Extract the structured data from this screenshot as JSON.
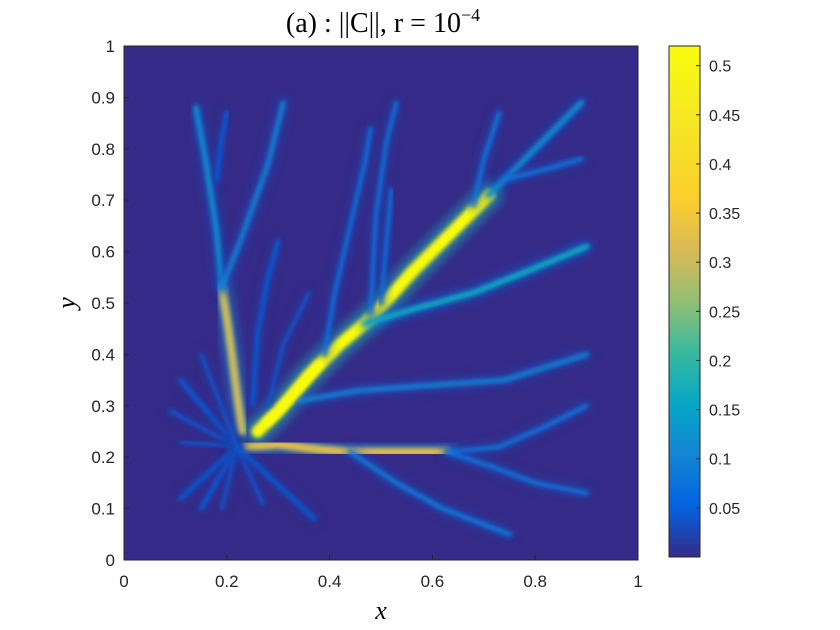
{
  "chart_data": {
    "type": "heatmap",
    "title": {
      "prefix": "(a) : ||C||, r = 10",
      "exponent": "−4"
    },
    "xlabel": "x",
    "ylabel": "y",
    "xlim": [
      0,
      1
    ],
    "ylim": [
      0,
      1
    ],
    "x_ticks": [
      "0",
      "0.2",
      "0.4",
      "0.6",
      "0.8",
      "1"
    ],
    "y_ticks": [
      "0",
      "0.1",
      "0.2",
      "0.3",
      "0.4",
      "0.5",
      "0.6",
      "0.7",
      "0.8",
      "0.9",
      "1"
    ],
    "colormap": "parula",
    "colorbar": {
      "range": [
        0,
        0.52
      ],
      "ticks": [
        "0.05",
        "0.1",
        "0.15",
        "0.2",
        "0.25",
        "0.3",
        "0.35",
        "0.4",
        "0.45",
        "0.5"
      ]
    },
    "background_value": 0.0,
    "source_point": [
      0.22,
      0.22
    ],
    "branches": [
      {
        "name": "main-trunk",
        "points": [
          [
            0.26,
            0.25
          ],
          [
            0.3,
            0.29
          ],
          [
            0.36,
            0.36
          ],
          [
            0.42,
            0.42
          ],
          [
            0.48,
            0.47
          ],
          [
            0.56,
            0.56
          ],
          [
            0.64,
            0.64
          ],
          [
            0.71,
            0.71
          ]
        ],
        "peak": 0.52
      },
      {
        "name": "upper-right-a",
        "points": [
          [
            0.71,
            0.71
          ],
          [
            0.76,
            0.76
          ],
          [
            0.83,
            0.83
          ],
          [
            0.89,
            0.89
          ]
        ],
        "peak": 0.12
      },
      {
        "name": "upper-right-b",
        "points": [
          [
            0.74,
            0.74
          ],
          [
            0.82,
            0.76
          ],
          [
            0.89,
            0.78
          ]
        ],
        "peak": 0.08
      },
      {
        "name": "upper-right-c",
        "points": [
          [
            0.68,
            0.69
          ],
          [
            0.7,
            0.78
          ],
          [
            0.73,
            0.87
          ]
        ],
        "peak": 0.08
      },
      {
        "name": "right-mid",
        "points": [
          [
            0.47,
            0.46
          ],
          [
            0.57,
            0.49
          ],
          [
            0.68,
            0.52
          ],
          [
            0.78,
            0.56
          ],
          [
            0.9,
            0.61
          ]
        ],
        "peak": 0.16
      },
      {
        "name": "up-from-050",
        "points": [
          [
            0.5,
            0.5
          ],
          [
            0.51,
            0.61
          ],
          [
            0.52,
            0.72
          ]
        ],
        "peak": 0.07
      },
      {
        "name": "up-from-048",
        "points": [
          [
            0.48,
            0.48
          ],
          [
            0.49,
            0.67
          ],
          [
            0.51,
            0.81
          ],
          [
            0.53,
            0.89
          ]
        ],
        "peak": 0.07
      },
      {
        "name": "up-from-040",
        "points": [
          [
            0.39,
            0.4
          ],
          [
            0.41,
            0.52
          ],
          [
            0.44,
            0.65
          ],
          [
            0.47,
            0.78
          ],
          [
            0.48,
            0.84
          ]
        ],
        "peak": 0.07
      },
      {
        "name": "lower-right",
        "points": [
          [
            0.34,
            0.31
          ],
          [
            0.46,
            0.33
          ],
          [
            0.6,
            0.34
          ],
          [
            0.74,
            0.35
          ],
          [
            0.9,
            0.4
          ]
        ],
        "peak": 0.1
      },
      {
        "name": "bottom-main",
        "points": [
          [
            0.23,
            0.22
          ],
          [
            0.3,
            0.225
          ],
          [
            0.38,
            0.215
          ],
          [
            0.44,
            0.21
          ],
          [
            0.55,
            0.21
          ],
          [
            0.63,
            0.21
          ]
        ],
        "peak": 0.32
      },
      {
        "name": "bottom-right-a",
        "points": [
          [
            0.63,
            0.21
          ],
          [
            0.73,
            0.22
          ],
          [
            0.82,
            0.26
          ],
          [
            0.9,
            0.3
          ]
        ],
        "peak": 0.08
      },
      {
        "name": "bottom-right-b",
        "points": [
          [
            0.63,
            0.21
          ],
          [
            0.72,
            0.18
          ],
          [
            0.8,
            0.15
          ],
          [
            0.9,
            0.13
          ]
        ],
        "peak": 0.08
      },
      {
        "name": "bottom-low",
        "points": [
          [
            0.44,
            0.21
          ],
          [
            0.53,
            0.15
          ],
          [
            0.62,
            0.1
          ],
          [
            0.75,
            0.05
          ]
        ],
        "peak": 0.09
      },
      {
        "name": "left-trunk",
        "points": [
          [
            0.23,
            0.25
          ],
          [
            0.22,
            0.32
          ],
          [
            0.21,
            0.4
          ],
          [
            0.2,
            0.47
          ],
          [
            0.19,
            0.53
          ]
        ],
        "peak": 0.3
      },
      {
        "name": "left-up-a",
        "points": [
          [
            0.19,
            0.53
          ],
          [
            0.18,
            0.64
          ],
          [
            0.16,
            0.77
          ],
          [
            0.14,
            0.88
          ]
        ],
        "peak": 0.12
      },
      {
        "name": "left-up-b",
        "points": [
          [
            0.19,
            0.53
          ],
          [
            0.23,
            0.63
          ],
          [
            0.28,
            0.77
          ],
          [
            0.31,
            0.89
          ]
        ],
        "peak": 0.1
      },
      {
        "name": "left-up-c",
        "points": [
          [
            0.18,
            0.74
          ],
          [
            0.19,
            0.82
          ],
          [
            0.2,
            0.87
          ]
        ],
        "peak": 0.05
      },
      {
        "name": "inner-up",
        "points": [
          [
            0.25,
            0.3
          ],
          [
            0.26,
            0.44
          ],
          [
            0.28,
            0.55
          ],
          [
            0.3,
            0.62
          ]
        ],
        "peak": 0.05
      },
      {
        "name": "diag-up",
        "points": [
          [
            0.28,
            0.3
          ],
          [
            0.31,
            0.42
          ],
          [
            0.36,
            0.52
          ]
        ],
        "peak": 0.04
      },
      {
        "name": "burst-1",
        "points": [
          [
            0.22,
            0.22
          ],
          [
            0.11,
            0.35
          ]
        ],
        "peak": 0.05
      },
      {
        "name": "burst-2",
        "points": [
          [
            0.22,
            0.22
          ],
          [
            0.09,
            0.29
          ]
        ],
        "peak": 0.04
      },
      {
        "name": "burst-3",
        "points": [
          [
            0.22,
            0.22
          ],
          [
            0.11,
            0.23
          ]
        ],
        "peak": 0.04
      },
      {
        "name": "burst-4",
        "points": [
          [
            0.22,
            0.22
          ],
          [
            0.11,
            0.12
          ]
        ],
        "peak": 0.05
      },
      {
        "name": "burst-5",
        "points": [
          [
            0.22,
            0.22
          ],
          [
            0.15,
            0.1
          ]
        ],
        "peak": 0.05
      },
      {
        "name": "burst-6",
        "points": [
          [
            0.22,
            0.22
          ],
          [
            0.19,
            0.1
          ]
        ],
        "peak": 0.04
      },
      {
        "name": "burst-7",
        "points": [
          [
            0.22,
            0.22
          ],
          [
            0.27,
            0.11
          ]
        ],
        "peak": 0.04
      },
      {
        "name": "burst-8",
        "points": [
          [
            0.22,
            0.22
          ],
          [
            0.37,
            0.08
          ]
        ],
        "peak": 0.05
      },
      {
        "name": "burst-9",
        "points": [
          [
            0.22,
            0.22
          ],
          [
            0.15,
            0.4
          ]
        ],
        "peak": 0.04
      }
    ]
  }
}
